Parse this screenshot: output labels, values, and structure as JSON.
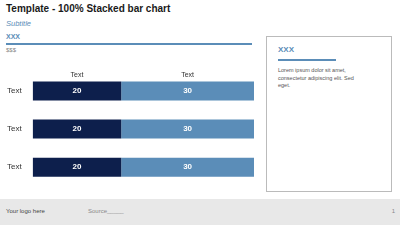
{
  "chart_data": {
    "type": "bar",
    "title": "Template - 100% Stacked bar chart",
    "subtitle": "Subtitle",
    "orientation": "horizontal",
    "stacked": true,
    "data_labels": true,
    "grid": false,
    "tick_labels": "y",
    "categories": [
      "Text",
      "Text",
      "Text"
    ],
    "series": [
      {
        "name": "Text",
        "color": "#0d1f4c",
        "values": [
          20,
          20,
          20
        ]
      },
      {
        "name": "Text",
        "color": "#5b8db8",
        "values": [
          30,
          30,
          30
        ]
      }
    ],
    "xlim": [
      0,
      50
    ],
    "annotations": [
      "XXX",
      "$$$",
      "XXX",
      "Lorem ipsum dolor sit amet,\nconsectetur adipiscing elit. Sed\neget.",
      "Your logo here",
      "Source_____",
      "1"
    ]
  }
}
